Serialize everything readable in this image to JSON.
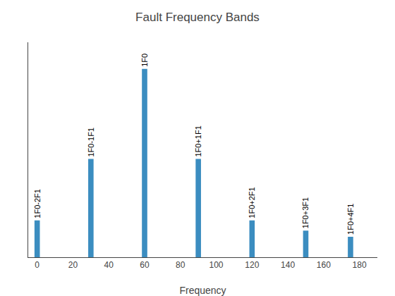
{
  "chart_data": {
    "type": "bar",
    "title": "Fault Frequency Bands",
    "xlabel": "Frequency",
    "x": [
      0,
      30,
      60,
      90,
      120,
      150,
      175
    ],
    "values": [
      0.18,
      0.48,
      0.92,
      0.48,
      0.18,
      0.13,
      0.1
    ],
    "annotations": [
      "1F0-2F1",
      "1F0-1F1",
      "1F0",
      "1F0+1F1",
      "1F0+2F1",
      "1F0+3F1",
      "1F0+4F1"
    ],
    "color": "#3B8DC0",
    "xlim": [
      -5,
      190
    ],
    "xticks": [
      0,
      20,
      40,
      60,
      80,
      100,
      120,
      140,
      160,
      180
    ],
    "ylim": [
      0,
      1.05
    ],
    "grid": false,
    "tick_labels": "x"
  }
}
